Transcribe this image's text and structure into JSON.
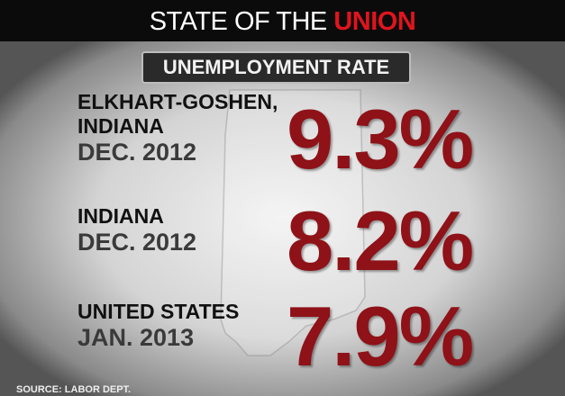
{
  "header": {
    "title": "STATE OF THE",
    "title_highlight": "UNION",
    "subtitle": "UNEMPLOYMENT RATE"
  },
  "rows": [
    {
      "label_lines": [
        "ELKHART-GOSHEN,",
        "INDIANA"
      ],
      "date": "DEC. 2012",
      "value": "9.3%"
    },
    {
      "label_lines": [
        "INDIANA"
      ],
      "date": "DEC. 2012",
      "value": "8.2%"
    },
    {
      "label_lines": [
        "UNITED STATES"
      ],
      "date": "JAN. 2013",
      "value": "7.9%"
    }
  ],
  "source": "SOURCE: LABOR DEPT."
}
